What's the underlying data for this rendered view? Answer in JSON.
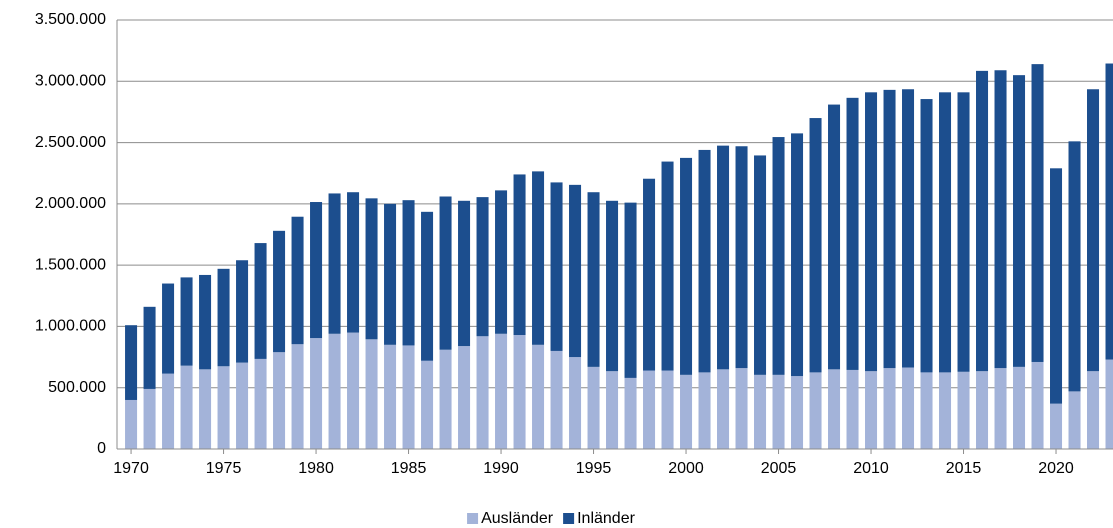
{
  "chart_data": {
    "type": "stacked-bar",
    "x": [
      1970,
      1971,
      1972,
      1973,
      1974,
      1975,
      1976,
      1977,
      1978,
      1979,
      1980,
      1981,
      1982,
      1983,
      1984,
      1985,
      1986,
      1987,
      1988,
      1989,
      1990,
      1991,
      1992,
      1993,
      1994,
      1995,
      1996,
      1997,
      1998,
      1999,
      2000,
      2001,
      2002,
      2003,
      2004,
      2005,
      2006,
      2007,
      2008,
      2009,
      2010,
      2011,
      2012,
      2013,
      2014,
      2015,
      2016,
      2017,
      2018,
      2019,
      2020,
      2021,
      2022,
      2023
    ],
    "series": [
      {
        "name": "Ausländer",
        "color": "#a3b3d9",
        "values": [
          400000,
          490000,
          615000,
          680000,
          650000,
          675000,
          705000,
          735000,
          790000,
          855000,
          905000,
          940000,
          950000,
          895000,
          850000,
          845000,
          720000,
          810000,
          840000,
          920000,
          940000,
          930000,
          850000,
          800000,
          750000,
          670000,
          635000,
          580000,
          640000,
          640000,
          605000,
          625000,
          650000,
          660000,
          605000,
          605000,
          595000,
          625000,
          650000,
          645000,
          635000,
          660000,
          665000,
          625000,
          625000,
          630000,
          635000,
          660000,
          670000,
          710000,
          370000,
          470000,
          635000,
          730000
        ]
      },
      {
        "name": "Inländer",
        "color": "#1c4e8e",
        "values": [
          610000,
          670000,
          735000,
          720000,
          770000,
          795000,
          835000,
          945000,
          990000,
          1040000,
          1110000,
          1145000,
          1145000,
          1150000,
          1150000,
          1185000,
          1215000,
          1250000,
          1185000,
          1135000,
          1170000,
          1310000,
          1415000,
          1375000,
          1405000,
          1425000,
          1390000,
          1430000,
          1565000,
          1705000,
          1770000,
          1815000,
          1825000,
          1810000,
          1790000,
          1940000,
          1980000,
          2075000,
          2160000,
          2220000,
          2275000,
          2270000,
          2270000,
          2230000,
          2285000,
          2280000,
          2450000,
          2430000,
          2380000,
          2430000,
          1920000,
          2040000,
          2300000,
          2415000
        ]
      }
    ],
    "xlim": [
      1969.24,
      2023.08
    ],
    "xticks": [
      1970,
      1975,
      1980,
      1985,
      1990,
      1995,
      2000,
      2005,
      2010,
      2015,
      2020
    ],
    "ylim": [
      0,
      3500000
    ],
    "yticks": [
      0,
      {
        "value": 500000,
        "label": "500.000"
      },
      {
        "value": 1000000,
        "label": "1.000.000"
      },
      {
        "value": 1500000,
        "label": "1.500.000"
      },
      {
        "value": 2000000,
        "label": "2.000.000"
      },
      {
        "value": 2500000,
        "label": "2.500.000"
      },
      {
        "value": 3000000,
        "label": "3.000.000"
      },
      {
        "value": 3500000,
        "label": "3.500.000"
      }
    ],
    "grid": true,
    "legend": "bottom"
  }
}
